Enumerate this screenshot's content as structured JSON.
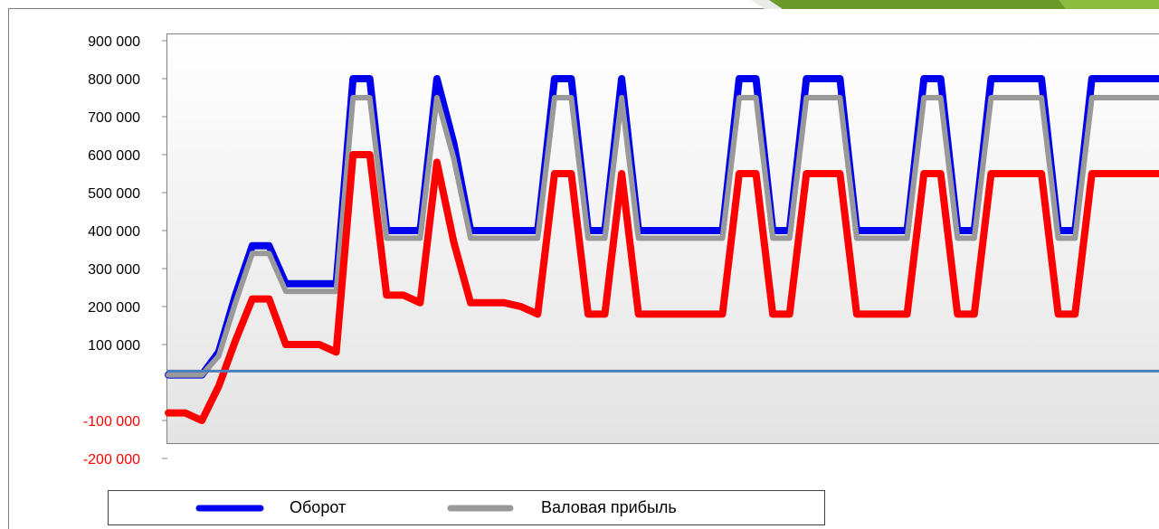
{
  "chart_data": {
    "type": "line",
    "y_ticks": [
      {
        "value": 900000,
        "label": "900 000",
        "color": "#000000"
      },
      {
        "value": 800000,
        "label": "800 000",
        "color": "#000000"
      },
      {
        "value": 700000,
        "label": "700 000",
        "color": "#000000"
      },
      {
        "value": 600000,
        "label": "600 000",
        "color": "#000000"
      },
      {
        "value": 500000,
        "label": "500 000",
        "color": "#000000"
      },
      {
        "value": 400000,
        "label": "400 000",
        "color": "#000000"
      },
      {
        "value": 300000,
        "label": "300 000",
        "color": "#000000"
      },
      {
        "value": 200000,
        "label": "200 000",
        "color": "#000000"
      },
      {
        "value": 100000,
        "label": "100 000",
        "color": "#000000"
      },
      {
        "value": -100000,
        "label": "-100 000",
        "color": "#ff0000"
      },
      {
        "value": -200000,
        "label": "-200 000",
        "color": "#ff0000"
      }
    ],
    "ylim": [
      -200000,
      900000
    ],
    "xlim": [
      0,
      59
    ],
    "zero_line": {
      "value": 30000,
      "color": "#4a7ebb"
    },
    "series": [
      {
        "name": "Оборот",
        "color": "#0000ee",
        "x": [
          0,
          1,
          2,
          3,
          4,
          5,
          6,
          7,
          8,
          9,
          10,
          11,
          12,
          13,
          14,
          15,
          16,
          17,
          18,
          19,
          20,
          21,
          22,
          23,
          24,
          25,
          26,
          27,
          28,
          29,
          30,
          31,
          32,
          33,
          34,
          35,
          36,
          37,
          38,
          39,
          40,
          41,
          42,
          43,
          44,
          45,
          46,
          47,
          48,
          49,
          50,
          51,
          52,
          53,
          54,
          55,
          56,
          57,
          58,
          59
        ],
        "values": [
          20000,
          20000,
          20000,
          80000,
          230000,
          360000,
          360000,
          260000,
          260000,
          260000,
          260000,
          800000,
          800000,
          400000,
          400000,
          400000,
          800000,
          630000,
          400000,
          400000,
          400000,
          400000,
          400000,
          800000,
          800000,
          400000,
          400000,
          800000,
          400000,
          400000,
          400000,
          400000,
          400000,
          400000,
          800000,
          800000,
          400000,
          400000,
          800000,
          800000,
          800000,
          400000,
          400000,
          400000,
          400000,
          800000,
          800000,
          400000,
          400000,
          800000,
          800000,
          800000,
          800000,
          400000,
          400000,
          800000,
          800000,
          800000,
          800000,
          800000
        ]
      },
      {
        "name": "Валовая прибыль",
        "color": "#999999",
        "x": [
          0,
          1,
          2,
          3,
          4,
          5,
          6,
          7,
          8,
          9,
          10,
          11,
          12,
          13,
          14,
          15,
          16,
          17,
          18,
          19,
          20,
          21,
          22,
          23,
          24,
          25,
          26,
          27,
          28,
          29,
          30,
          31,
          32,
          33,
          34,
          35,
          36,
          37,
          38,
          39,
          40,
          41,
          42,
          43,
          44,
          45,
          46,
          47,
          48,
          49,
          50,
          51,
          52,
          53,
          54,
          55,
          56,
          57,
          58,
          59
        ],
        "values": [
          20000,
          20000,
          20000,
          70000,
          210000,
          340000,
          340000,
          240000,
          240000,
          240000,
          240000,
          750000,
          750000,
          380000,
          380000,
          380000,
          750000,
          590000,
          380000,
          380000,
          380000,
          380000,
          380000,
          750000,
          750000,
          380000,
          380000,
          750000,
          380000,
          380000,
          380000,
          380000,
          380000,
          380000,
          750000,
          750000,
          380000,
          380000,
          750000,
          750000,
          750000,
          380000,
          380000,
          380000,
          380000,
          750000,
          750000,
          380000,
          380000,
          750000,
          750000,
          750000,
          750000,
          380000,
          380000,
          750000,
          750000,
          750000,
          750000,
          750000
        ]
      },
      {
        "color": "#ff0000",
        "x": [
          0,
          1,
          2,
          3,
          4,
          5,
          6,
          7,
          8,
          9,
          10,
          11,
          12,
          13,
          14,
          15,
          16,
          17,
          18,
          19,
          20,
          21,
          22,
          23,
          24,
          25,
          26,
          27,
          28,
          29,
          30,
          31,
          32,
          33,
          34,
          35,
          36,
          37,
          38,
          39,
          40,
          41,
          42,
          43,
          44,
          45,
          46,
          47,
          48,
          49,
          50,
          51,
          52,
          53,
          54,
          55,
          56,
          57,
          58,
          59
        ],
        "values": [
          -80000,
          -80000,
          -100000,
          -10000,
          110000,
          220000,
          220000,
          100000,
          100000,
          100000,
          80000,
          600000,
          600000,
          230000,
          230000,
          210000,
          580000,
          370000,
          210000,
          210000,
          210000,
          200000,
          180000,
          550000,
          550000,
          180000,
          180000,
          550000,
          180000,
          180000,
          180000,
          180000,
          180000,
          180000,
          550000,
          550000,
          180000,
          180000,
          550000,
          550000,
          550000,
          180000,
          180000,
          180000,
          180000,
          550000,
          550000,
          180000,
          180000,
          550000,
          550000,
          550000,
          550000,
          180000,
          180000,
          550000,
          550000,
          550000,
          550000,
          550000
        ]
      }
    ],
    "legend": {
      "position": "bottom",
      "items": [
        {
          "label": "Оборот",
          "color": "#0000ee"
        },
        {
          "label": "Валовая прибыль",
          "color": "#999999"
        }
      ]
    },
    "grid": false
  },
  "decor": {
    "corner_gray": "#cfd5cc",
    "corner_green_dark": "#6c9a2a",
    "corner_green_light": "#8dbb3e"
  }
}
